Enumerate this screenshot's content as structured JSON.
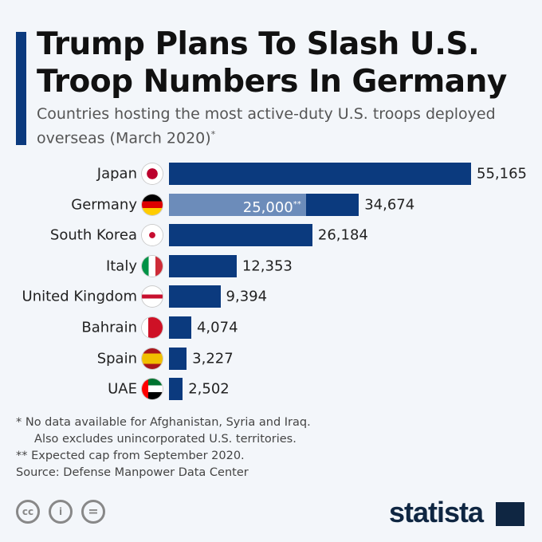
{
  "title": "Trump Plans To Slash U.S. Troop Numbers In Germany",
  "subtitle": "Countries hosting the most active-duty U.S. troops deployed overseas (March 2020)",
  "subtitle_mark": "*",
  "chart_data": {
    "type": "bar",
    "orientation": "horizontal",
    "categories": [
      "Japan",
      "Germany",
      "South Korea",
      "Italy",
      "United Kingdom",
      "Bahrain",
      "Spain",
      "UAE"
    ],
    "values": [
      55165,
      34674,
      26184,
      12353,
      9394,
      4074,
      3227,
      2502
    ],
    "value_labels": [
      "55,165",
      "34,674",
      "26,184",
      "12,353",
      "9,394",
      "4,074",
      "3,227",
      "2,502"
    ],
    "annotation": {
      "category": "Germany",
      "value": 25000,
      "label": "25,000",
      "mark": "**"
    },
    "colors": {
      "bar": "#0b3a7e",
      "cap": "#6c8cba"
    }
  },
  "notes": [
    "*   No data available for Afghanistan, Syria and Iraq.",
    "     Also excludes unincorporated U.S. territories.",
    "** Expected cap from September 2020.",
    "Source: Defense Manpower Data Center"
  ],
  "license_icons": [
    "cc",
    "by",
    "nd"
  ],
  "brand": "statista"
}
